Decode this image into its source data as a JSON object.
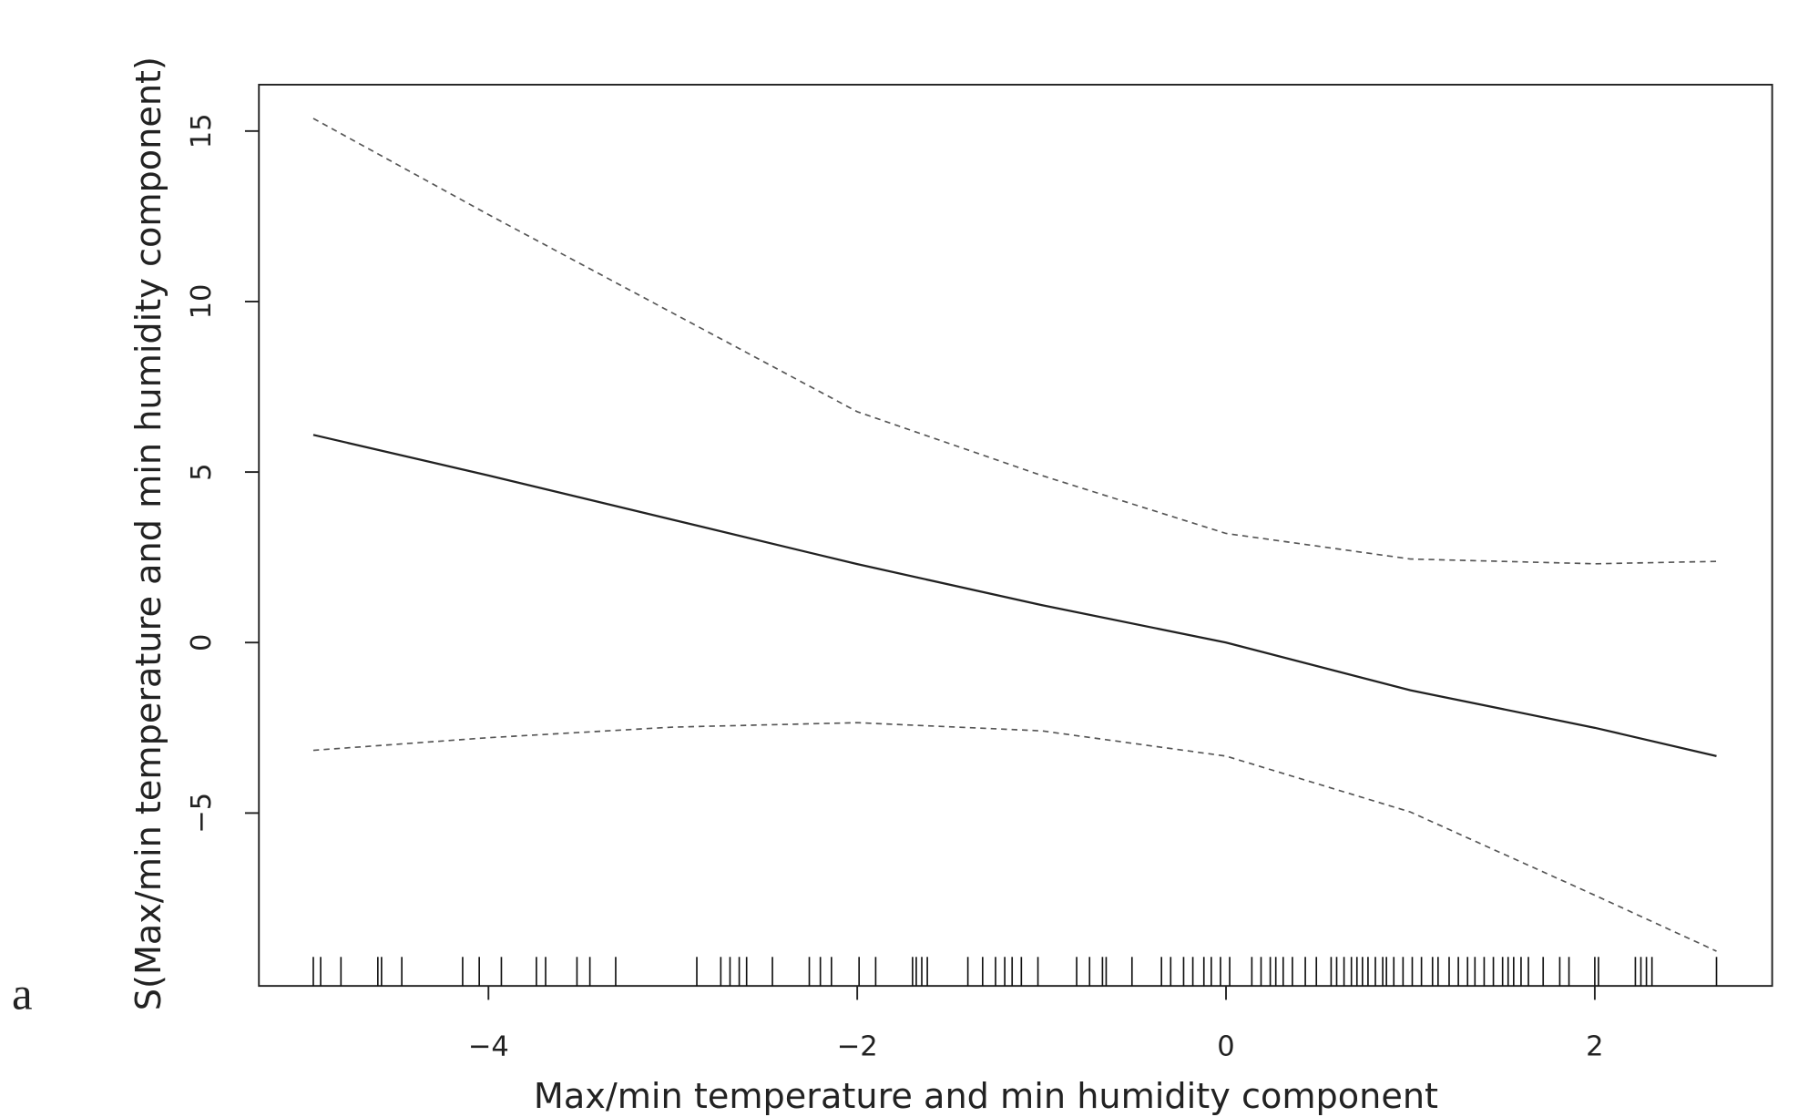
{
  "chart_data": {
    "type": "line",
    "panel_label": "a",
    "xlabel": "Max/min temperature and min humidity component",
    "ylabel": "S(Max/min temperature and min humidity component)",
    "x": [
      -4.95,
      -4,
      -3,
      -2,
      -1,
      0,
      1,
      2,
      2.66
    ],
    "series": [
      {
        "color": "#222222",
        "line_style": "solid",
        "values": [
          6.09,
          4.9,
          3.6,
          2.3,
          1.1,
          0,
          -1.4,
          -2.5,
          -3.33
        ]
      },
      {
        "color": "#555555",
        "line_style": "dashed",
        "values": [
          15.37,
          12.55,
          9.66,
          6.77,
          4.9,
          3.2,
          2.45,
          2.31,
          2.38
        ]
      },
      {
        "color": "#555555",
        "line_style": "dashed",
        "values": [
          -3.16,
          -2.79,
          -2.48,
          -2.35,
          -2.59,
          -3.33,
          -4.97,
          -7.41,
          -9.05
        ]
      }
    ],
    "rug": [
      -4.95,
      -4.91,
      -4.8,
      -4.6,
      -4.58,
      -4.47,
      -4.14,
      -4.05,
      -3.93,
      -3.74,
      -3.69,
      -3.52,
      -3.45,
      -3.31,
      -2.87,
      -2.74,
      -2.69,
      -2.64,
      -2.6,
      -2.46,
      -2.26,
      -2.2,
      -2.14,
      -1.99,
      -1.9,
      -1.7,
      -1.68,
      -1.65,
      -1.62,
      -1.4,
      -1.32,
      -1.25,
      -1.2,
      -1.16,
      -1.11,
      -1.02,
      -0.81,
      -0.74,
      -0.67,
      -0.65,
      -0.51,
      -0.35,
      -0.3,
      -0.23,
      -0.18,
      -0.12,
      -0.08,
      -0.03,
      0.02,
      0.14,
      0.19,
      0.24,
      0.27,
      0.31,
      0.36,
      0.43,
      0.49,
      0.57,
      0.6,
      0.64,
      0.68,
      0.71,
      0.74,
      0.77,
      0.81,
      0.85,
      0.87,
      0.91,
      0.96,
      1.01,
      1.06,
      1.12,
      1.15,
      1.21,
      1.26,
      1.31,
      1.35,
      1.4,
      1.45,
      1.5,
      1.53,
      1.56,
      1.6,
      1.64,
      1.72,
      1.81,
      1.86,
      2.0,
      2.02,
      2.22,
      2.25,
      2.28,
      2.31,
      2.66
    ],
    "xlim": [
      -5.245,
      2.962
    ],
    "ylim": [
      -10.07,
      16.36
    ],
    "xticks": [
      {
        "value": -4,
        "label": "−4"
      },
      {
        "value": -2,
        "label": "−2"
      },
      0,
      2
    ],
    "yticks": [
      {
        "value": -5,
        "label": "−5"
      },
      0,
      5,
      10,
      15
    ]
  }
}
